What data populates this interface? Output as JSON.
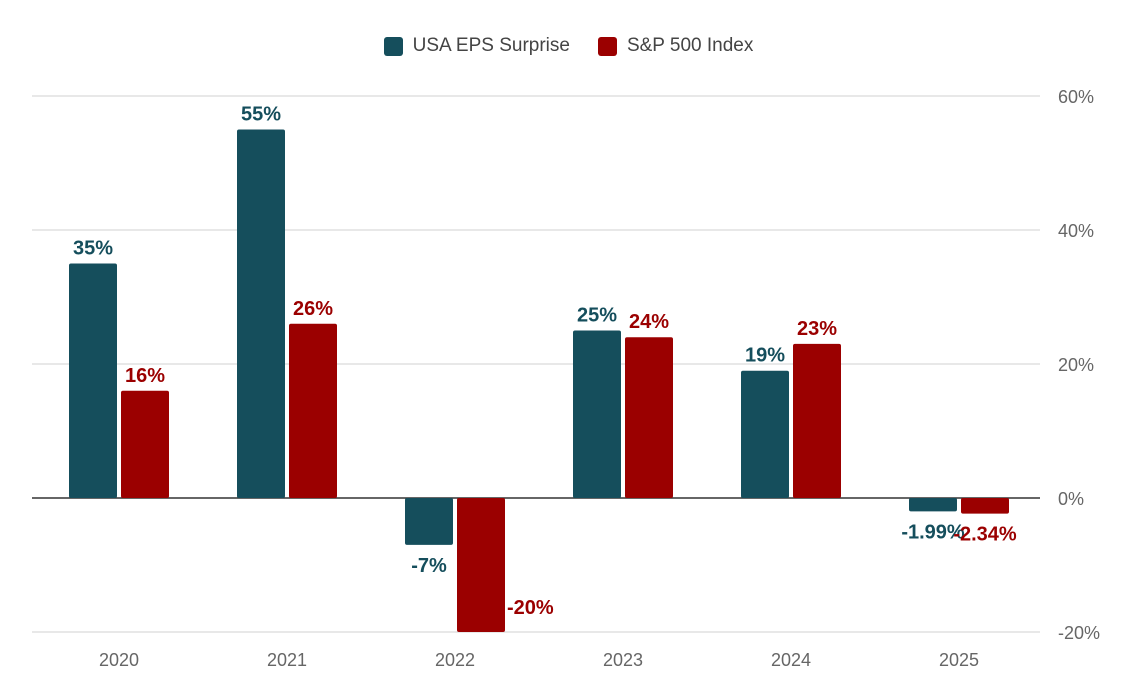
{
  "colors": {
    "series1": "#154e5c",
    "series2": "#9b0000",
    "grid": "#d9d9d9",
    "zero_line": "#333333",
    "tick_text": "#666666"
  },
  "legend_position": "top-center",
  "chart_data": {
    "type": "bar",
    "categories": [
      "2020",
      "2021",
      "2022",
      "2023",
      "2024",
      "2025"
    ],
    "series": [
      {
        "name": "USA EPS Surprise",
        "values": [
          35,
          55,
          -7,
          25,
          19,
          -1.99
        ],
        "labels": [
          "35%",
          "55%",
          "-7%",
          "25%",
          "19%",
          "-1.99%"
        ]
      },
      {
        "name": "S&P 500 Index",
        "values": [
          16,
          26,
          -20,
          24,
          23,
          -2.34
        ],
        "labels": [
          "16%",
          "26%",
          "-20%",
          "24%",
          "23%",
          "-2.34%"
        ]
      }
    ],
    "y_ticks": [
      {
        "value": 60,
        "label": "60%"
      },
      {
        "value": 40,
        "label": "40%"
      },
      {
        "value": 20,
        "label": "20%"
      },
      {
        "value": 0,
        "label": "0%"
      },
      {
        "value": -20,
        "label": "-20%"
      }
    ],
    "ylim": [
      -20,
      60
    ],
    "y_axis_side": "right",
    "grid": true,
    "title": "",
    "xlabel": "",
    "ylabel": ""
  }
}
